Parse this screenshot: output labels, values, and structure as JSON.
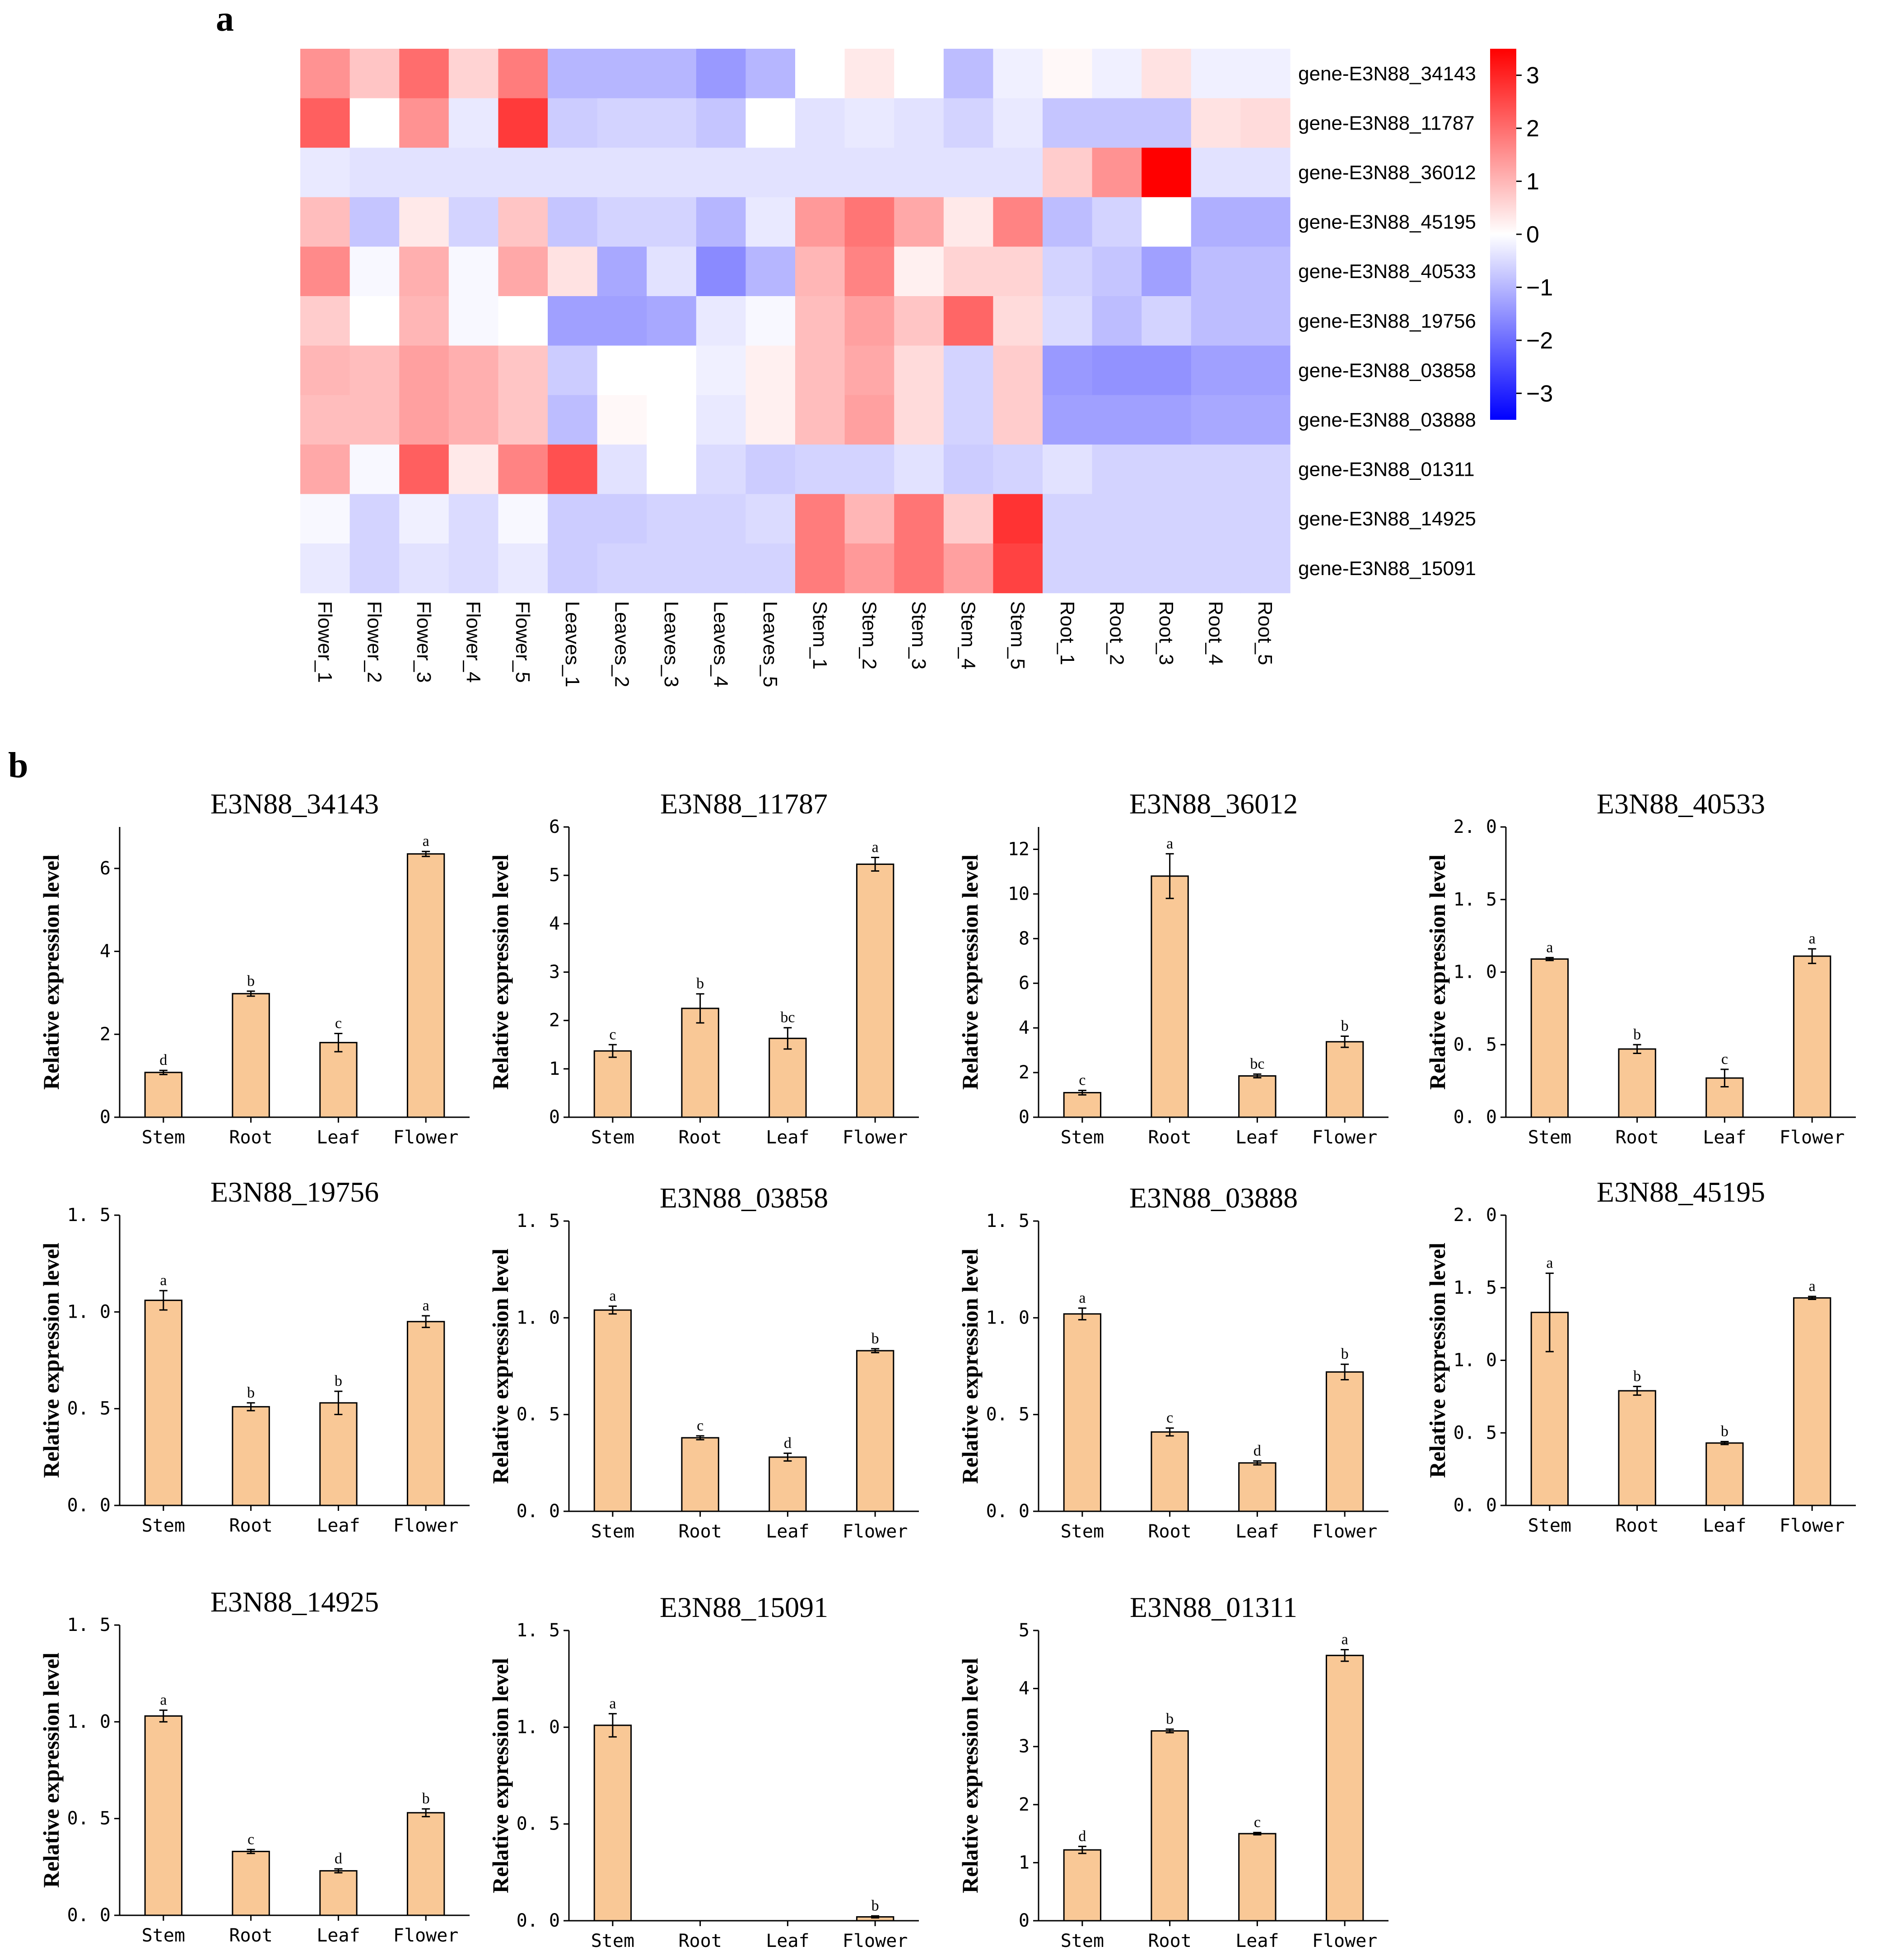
{
  "figure": {
    "panel_a_label": "a",
    "panel_b_label": "b"
  },
  "colors": {
    "heat_low": "#0000ff",
    "heat_mid": "#ffffff",
    "heat_high": "#ff0000",
    "bar_fill": "#f9c896",
    "bar_stroke": "#000000"
  },
  "chart_data": [
    {
      "type": "heatmap",
      "rows": [
        "gene-E3N88_34143",
        "gene-E3N88_11787",
        "gene-E3N88_36012",
        "gene-E3N88_45195",
        "gene-E3N88_40533",
        "gene-E3N88_19756",
        "gene-E3N88_03858",
        "gene-E3N88_03888",
        "gene-E3N88_01311",
        "gene-E3N88_14925",
        "gene-E3N88_15091"
      ],
      "columns": [
        "Flower_1",
        "Flower_2",
        "Flower_3",
        "Flower_4",
        "Flower_5",
        "Leaves_1",
        "Leaves_2",
        "Leaves_3",
        "Leaves_4",
        "Leaves_5",
        "Stem_1",
        "Stem_2",
        "Stem_3",
        "Stem_4",
        "Stem_5",
        "Root_1",
        "Root_2",
        "Root_3",
        "Root_4",
        "Root_5"
      ],
      "values": [
        [
          1.5,
          0.8,
          2.0,
          0.6,
          1.8,
          -1.0,
          -1.0,
          -1.0,
          -1.4,
          -1.0,
          0.0,
          0.3,
          0.0,
          -0.9,
          -0.2,
          0.1,
          -0.2,
          0.4,
          -0.2,
          -0.2
        ],
        [
          2.2,
          0.0,
          1.5,
          -0.3,
          2.7,
          -0.7,
          -0.6,
          -0.6,
          -0.8,
          0.0,
          -0.4,
          -0.3,
          -0.4,
          -0.6,
          -0.3,
          -0.8,
          -0.8,
          -0.8,
          0.4,
          0.5
        ],
        [
          -0.3,
          -0.4,
          -0.4,
          -0.4,
          -0.4,
          -0.4,
          -0.4,
          -0.4,
          -0.4,
          -0.4,
          -0.4,
          -0.4,
          -0.4,
          -0.4,
          -0.4,
          0.7,
          1.5,
          3.5,
          -0.4,
          -0.4
        ],
        [
          0.9,
          -0.8,
          0.3,
          -0.6,
          0.8,
          -0.8,
          -0.6,
          -0.6,
          -1.0,
          -0.3,
          1.4,
          1.9,
          1.2,
          0.3,
          1.7,
          -0.9,
          -0.6,
          0.0,
          -1.1,
          -1.1
        ],
        [
          1.6,
          -0.1,
          1.1,
          -0.1,
          1.2,
          0.4,
          -1.2,
          -0.4,
          -1.6,
          -1.0,
          1.0,
          1.7,
          0.2,
          0.6,
          0.6,
          -0.6,
          -0.8,
          -1.3,
          -0.9,
          -0.9
        ],
        [
          0.7,
          0.0,
          1.0,
          -0.1,
          0.0,
          -1.3,
          -1.3,
          -1.2,
          -0.3,
          -0.1,
          0.9,
          1.3,
          0.8,
          2.1,
          0.5,
          -0.5,
          -0.9,
          -0.6,
          -0.9,
          -0.9
        ],
        [
          1.0,
          0.9,
          1.3,
          1.1,
          0.8,
          -0.7,
          0.0,
          0.0,
          -0.2,
          0.2,
          0.9,
          1.2,
          0.5,
          -0.6,
          0.7,
          -1.4,
          -1.5,
          -1.5,
          -1.3,
          -1.3
        ],
        [
          0.9,
          0.9,
          1.3,
          1.1,
          0.8,
          -0.9,
          0.1,
          0.0,
          -0.3,
          0.2,
          0.9,
          1.3,
          0.5,
          -0.6,
          0.7,
          -1.3,
          -1.3,
          -1.3,
          -1.2,
          -1.2
        ],
        [
          1.2,
          -0.1,
          2.2,
          0.3,
          1.7,
          2.4,
          -0.4,
          0.0,
          -0.5,
          -0.7,
          -0.6,
          -0.6,
          -0.4,
          -0.7,
          -0.6,
          -0.4,
          -0.6,
          -0.6,
          -0.6,
          -0.6
        ],
        [
          -0.1,
          -0.6,
          -0.2,
          -0.5,
          -0.1,
          -0.7,
          -0.7,
          -0.6,
          -0.6,
          -0.5,
          1.8,
          1.0,
          1.9,
          0.7,
          2.8,
          -0.6,
          -0.6,
          -0.6,
          -0.6,
          -0.6
        ],
        [
          -0.3,
          -0.6,
          -0.4,
          -0.5,
          -0.3,
          -0.7,
          -0.6,
          -0.6,
          -0.6,
          -0.6,
          1.8,
          1.4,
          1.9,
          1.3,
          2.6,
          -0.6,
          -0.6,
          -0.6,
          -0.6,
          -0.6
        ]
      ],
      "colorbar_ticks": [
        "3",
        "2",
        "1",
        "0",
        "−1",
        "−2",
        "−3"
      ],
      "colorbar_range": [
        -3.5,
        3.5
      ]
    },
    {
      "type": "bar",
      "title": "E3N88_34143",
      "ylabel": "Relative expression level",
      "categories": [
        "Stem",
        "Root",
        "Leaf",
        "Flower"
      ],
      "values": [
        1.08,
        2.98,
        1.8,
        6.35
      ],
      "errors": [
        0.05,
        0.06,
        0.22,
        0.06
      ],
      "significance": [
        "d",
        "b",
        "c",
        "a"
      ],
      "ylim": [
        0,
        7
      ],
      "yticks": [
        "0",
        "2",
        "4",
        "6"
      ]
    },
    {
      "type": "bar",
      "title": "E3N88_11787",
      "ylabel": "Relative expression level",
      "categories": [
        "Stem",
        "Root",
        "Leaf",
        "Flower"
      ],
      "values": [
        1.37,
        2.25,
        1.63,
        5.23
      ],
      "errors": [
        0.13,
        0.3,
        0.22,
        0.14
      ],
      "significance": [
        "c",
        "b",
        "bc",
        "a"
      ],
      "ylim": [
        0,
        6
      ],
      "yticks": [
        "0",
        "1",
        "2",
        "3",
        "4",
        "5",
        "6"
      ]
    },
    {
      "type": "bar",
      "title": "E3N88_36012",
      "ylabel": "Relative expression level",
      "categories": [
        "Stem",
        "Root",
        "Leaf",
        "Flower"
      ],
      "values": [
        1.1,
        10.8,
        1.85,
        3.38
      ],
      "errors": [
        0.1,
        1.0,
        0.08,
        0.25
      ],
      "significance": [
        "c",
        "a",
        "bc",
        "b"
      ],
      "ylim": [
        0,
        13
      ],
      "yticks": [
        "0",
        "2",
        "4",
        "6",
        "8",
        "10",
        "12"
      ]
    },
    {
      "type": "bar",
      "title": "E3N88_40533",
      "ylabel": "Relative expression level",
      "categories": [
        "Stem",
        "Root",
        "Leaf",
        "Flower"
      ],
      "values": [
        1.09,
        0.47,
        0.27,
        1.11
      ],
      "errors": [
        0.01,
        0.03,
        0.06,
        0.05
      ],
      "significance": [
        "a",
        "b",
        "c",
        "a"
      ],
      "ylim": [
        0,
        2.0
      ],
      "yticks": [
        "0. 0",
        "0. 5",
        "1. 0",
        "1. 5",
        "2. 0"
      ]
    },
    {
      "type": "bar",
      "title": "E3N88_19756",
      "ylabel": "Relative expression level",
      "categories": [
        "Stem",
        "Root",
        "Leaf",
        "Flower"
      ],
      "values": [
        1.06,
        0.51,
        0.53,
        0.95
      ],
      "errors": [
        0.05,
        0.02,
        0.06,
        0.03
      ],
      "significance": [
        "a",
        "b",
        "b",
        "a"
      ],
      "ylim": [
        0,
        1.5
      ],
      "yticks": [
        "0. 0",
        "0. 5",
        "1. 0",
        "1. 5"
      ]
    },
    {
      "type": "bar",
      "title": "E3N88_03858",
      "ylabel": "Relative expression level",
      "categories": [
        "Stem",
        "Root",
        "Leaf",
        "Flower"
      ],
      "values": [
        1.04,
        0.38,
        0.28,
        0.83
      ],
      "errors": [
        0.02,
        0.01,
        0.02,
        0.01
      ],
      "significance": [
        "a",
        "c",
        "d",
        "b"
      ],
      "ylim": [
        0,
        1.5
      ],
      "yticks": [
        "0. 0",
        "0. 5",
        "1. 0",
        "1. 5"
      ]
    },
    {
      "type": "bar",
      "title": "E3N88_03888",
      "ylabel": "Relative expression level",
      "categories": [
        "Stem",
        "Root",
        "Leaf",
        "Flower"
      ],
      "values": [
        1.02,
        0.41,
        0.25,
        0.72
      ],
      "errors": [
        0.03,
        0.02,
        0.01,
        0.04
      ],
      "significance": [
        "a",
        "c",
        "d",
        "b"
      ],
      "ylim": [
        0,
        1.5
      ],
      "yticks": [
        "0. 0",
        "0. 5",
        "1. 0",
        "1. 5"
      ]
    },
    {
      "type": "bar",
      "title": "E3N88_45195",
      "ylabel": "Relative expression level",
      "categories": [
        "Stem",
        "Root",
        "Leaf",
        "Flower"
      ],
      "values": [
        1.33,
        0.79,
        0.43,
        1.43
      ],
      "errors": [
        0.27,
        0.03,
        0.01,
        0.01
      ],
      "significance": [
        "a",
        "b",
        "b",
        "a"
      ],
      "ylim": [
        0,
        2.0
      ],
      "yticks": [
        "0. 0",
        "0. 5",
        "1. 0",
        "1. 5",
        "2. 0"
      ]
    },
    {
      "type": "bar",
      "title": "E3N88_14925",
      "ylabel": "Relative expression level",
      "categories": [
        "Stem",
        "Root",
        "Leaf",
        "Flower"
      ],
      "values": [
        1.03,
        0.33,
        0.23,
        0.53
      ],
      "errors": [
        0.03,
        0.01,
        0.01,
        0.02
      ],
      "significance": [
        "a",
        "c",
        "d",
        "b"
      ],
      "ylim": [
        0,
        1.5
      ],
      "yticks": [
        "0. 0",
        "0. 5",
        "1. 0",
        "1. 5"
      ]
    },
    {
      "type": "bar",
      "title": "E3N88_15091",
      "ylabel": "Relative expression level",
      "categories": [
        "Stem",
        "Root",
        "Leaf",
        "Flower"
      ],
      "values": [
        1.01,
        0.0,
        0.0,
        0.02
      ],
      "errors": [
        0.06,
        0.0,
        0.0,
        0.005
      ],
      "significance": [
        "a",
        "",
        "",
        "b"
      ],
      "ylim": [
        0,
        1.5
      ],
      "yticks": [
        "0. 0",
        "0. 5",
        "1. 0",
        "1. 5"
      ]
    },
    {
      "type": "bar",
      "title": "E3N88_01311",
      "ylabel": "Relative expression level",
      "categories": [
        "Stem",
        "Root",
        "Leaf",
        "Flower"
      ],
      "values": [
        1.22,
        3.27,
        1.5,
        4.57
      ],
      "errors": [
        0.06,
        0.03,
        0.02,
        0.1
      ],
      "significance": [
        "d",
        "b",
        "c",
        "a"
      ],
      "ylim": [
        0,
        5
      ],
      "yticks": [
        "0",
        "1",
        "2",
        "3",
        "4",
        "5"
      ]
    }
  ]
}
